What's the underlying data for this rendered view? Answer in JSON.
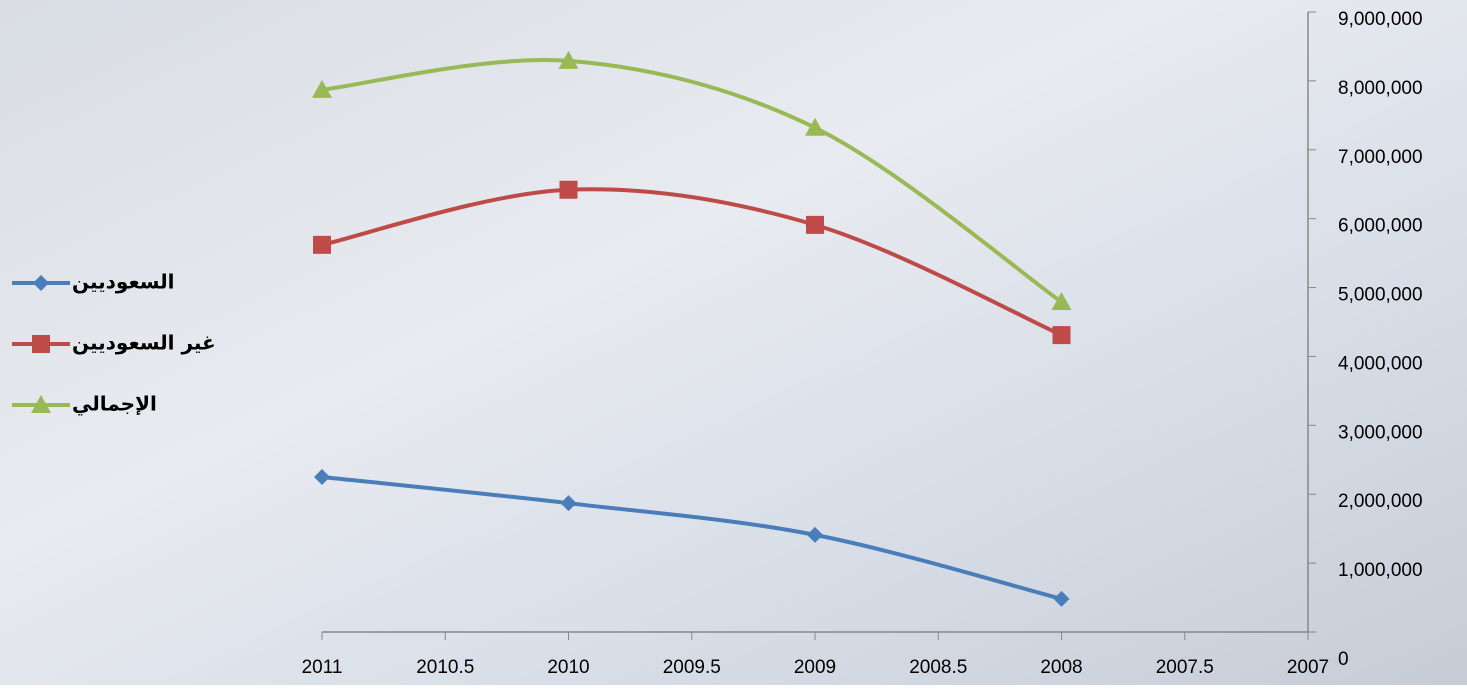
{
  "chart_data": {
    "type": "line",
    "x": [
      2011,
      2010,
      2009,
      2008
    ],
    "series": [
      {
        "name": "السعوديين",
        "color": "#4a7ebb",
        "marker": "diamond",
        "values": [
          2250000,
          1870000,
          1410000,
          480000
        ]
      },
      {
        "name": "غير السعوديين",
        "color": "#be4b48",
        "marker": "square",
        "values": [
          5620000,
          6420000,
          5910000,
          4310000
        ]
      },
      {
        "name": "الإجمالي",
        "color": "#98b954",
        "marker": "triangle",
        "values": [
          7870000,
          8290000,
          7320000,
          4790000
        ]
      }
    ],
    "xlim": [
      2011,
      2007
    ],
    "xticks": [
      2011,
      2010.5,
      2010,
      2009.5,
      2009,
      2008.5,
      2008,
      2007.5,
      2007
    ],
    "ylim": [
      0,
      9000000
    ],
    "yticks": [
      0,
      {
        "value": 1000000,
        "label": "1,000,000"
      },
      {
        "value": 2000000,
        "label": "2,000,000"
      },
      {
        "value": 3000000,
        "label": "3,000,000"
      },
      {
        "value": 4000000,
        "label": "4,000,000"
      },
      {
        "value": 5000000,
        "label": "5,000,000"
      },
      {
        "value": 6000000,
        "label": "6,000,000"
      },
      {
        "value": 7000000,
        "label": "7,000,000"
      },
      {
        "value": 8000000,
        "label": "8,000,000"
      },
      {
        "value": 9000000,
        "label": "9,000,000"
      }
    ],
    "legend": "left",
    "smooth": true
  }
}
